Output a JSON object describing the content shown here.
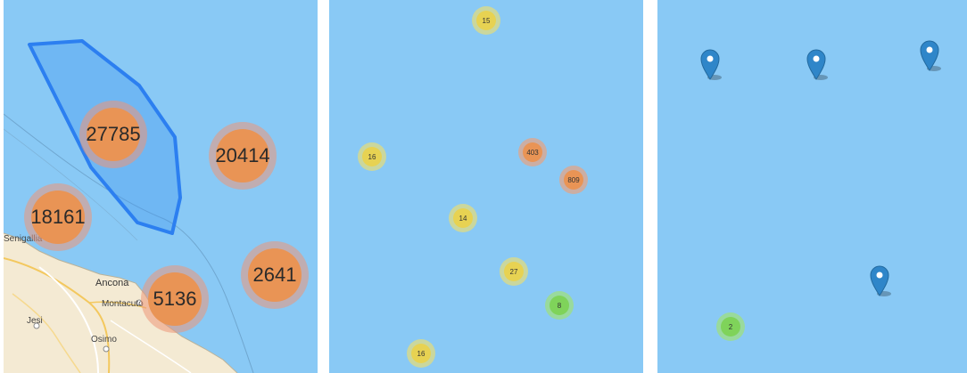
{
  "colors": {
    "sea": "#89c9f5",
    "land": "#f4ead3",
    "polygon_stroke": "#2c7ff0",
    "cluster_large": "#e99455",
    "cluster_medium": "#e7d252",
    "cluster_small": "#7fd35a",
    "marker": "#2f86c9"
  },
  "panel1": {
    "towns": [
      "Senigallia",
      "Ancona",
      "Montacuto",
      "Jesi",
      "Osimo"
    ],
    "clusters": [
      {
        "label": "27785",
        "color": "orange"
      },
      {
        "label": "20414",
        "color": "orange"
      },
      {
        "label": "18161",
        "color": "orange"
      },
      {
        "label": "2641",
        "color": "orange"
      },
      {
        "label": "5136",
        "color": "orange"
      }
    ]
  },
  "panel2": {
    "clusters": [
      {
        "label": "15",
        "color": "yellow"
      },
      {
        "label": "16",
        "color": "yellow"
      },
      {
        "label": "403",
        "color": "orange"
      },
      {
        "label": "809",
        "color": "orange"
      },
      {
        "label": "14",
        "color": "yellow"
      },
      {
        "label": "27",
        "color": "yellow"
      },
      {
        "label": "8",
        "color": "green"
      },
      {
        "label": "16",
        "color": "yellow"
      }
    ]
  },
  "panel3": {
    "markers": [
      "map-marker-icon",
      "map-marker-icon",
      "map-marker-icon",
      "map-marker-icon"
    ],
    "clusters": [
      {
        "label": "2",
        "color": "green"
      }
    ]
  }
}
